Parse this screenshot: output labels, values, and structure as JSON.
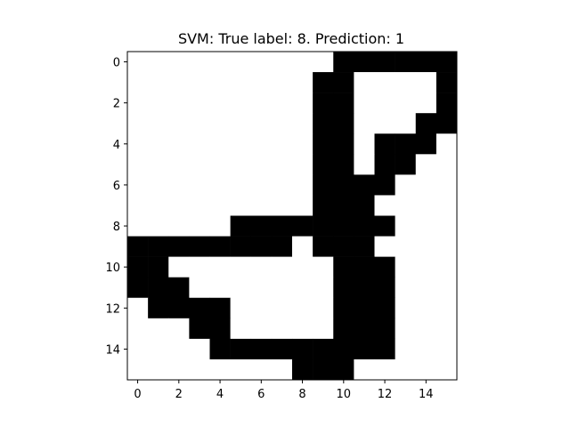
{
  "chart_data": {
    "type": "heatmap",
    "title": "SVM: True label: 8. Prediction: 1",
    "xlabel": "",
    "ylabel": "",
    "rows": 16,
    "cols": 16,
    "xlim": [
      -0.5,
      15.5
    ],
    "ylim": [
      15.5,
      -0.5
    ],
    "xticks": [
      "0",
      "2",
      "4",
      "6",
      "8",
      "10",
      "12",
      "14"
    ],
    "yticks": [
      "0",
      "2",
      "4",
      "6",
      "8",
      "10",
      "12",
      "14"
    ],
    "colormap": [
      "#ffffff",
      "#000000"
    ],
    "grid": false,
    "values": [
      [
        0,
        0,
        0,
        0,
        0,
        0,
        0,
        0,
        0,
        0,
        1,
        1,
        1,
        1,
        1,
        1
      ],
      [
        0,
        0,
        0,
        0,
        0,
        0,
        0,
        0,
        0,
        1,
        1,
        0,
        0,
        0,
        0,
        1
      ],
      [
        0,
        0,
        0,
        0,
        0,
        0,
        0,
        0,
        0,
        1,
        1,
        0,
        0,
        0,
        0,
        1
      ],
      [
        0,
        0,
        0,
        0,
        0,
        0,
        0,
        0,
        0,
        1,
        1,
        0,
        0,
        0,
        1,
        1
      ],
      [
        0,
        0,
        0,
        0,
        0,
        0,
        0,
        0,
        0,
        1,
        1,
        0,
        1,
        1,
        1,
        0
      ],
      [
        0,
        0,
        0,
        0,
        0,
        0,
        0,
        0,
        0,
        1,
        1,
        0,
        1,
        1,
        0,
        0
      ],
      [
        0,
        0,
        0,
        0,
        0,
        0,
        0,
        0,
        0,
        1,
        1,
        1,
        1,
        0,
        0,
        0
      ],
      [
        0,
        0,
        0,
        0,
        0,
        0,
        0,
        0,
        0,
        1,
        1,
        1,
        0,
        0,
        0,
        0
      ],
      [
        0,
        0,
        0,
        0,
        0,
        1,
        1,
        1,
        1,
        1,
        1,
        1,
        1,
        0,
        0,
        0
      ],
      [
        1,
        1,
        1,
        1,
        1,
        1,
        1,
        1,
        0,
        1,
        1,
        1,
        0,
        0,
        0,
        0
      ],
      [
        1,
        1,
        0,
        0,
        0,
        0,
        0,
        0,
        0,
        0,
        1,
        1,
        1,
        0,
        0,
        0
      ],
      [
        1,
        1,
        1,
        0,
        0,
        0,
        0,
        0,
        0,
        0,
        1,
        1,
        1,
        0,
        0,
        0
      ],
      [
        0,
        1,
        1,
        1,
        1,
        0,
        0,
        0,
        0,
        0,
        1,
        1,
        1,
        0,
        0,
        0
      ],
      [
        0,
        0,
        0,
        1,
        1,
        0,
        0,
        0,
        0,
        0,
        1,
        1,
        1,
        0,
        0,
        0
      ],
      [
        0,
        0,
        0,
        0,
        1,
        1,
        1,
        1,
        1,
        1,
        1,
        1,
        1,
        0,
        0,
        0
      ],
      [
        0,
        0,
        0,
        0,
        0,
        0,
        0,
        0,
        1,
        1,
        1,
        0,
        0,
        0,
        0,
        0
      ]
    ]
  }
}
